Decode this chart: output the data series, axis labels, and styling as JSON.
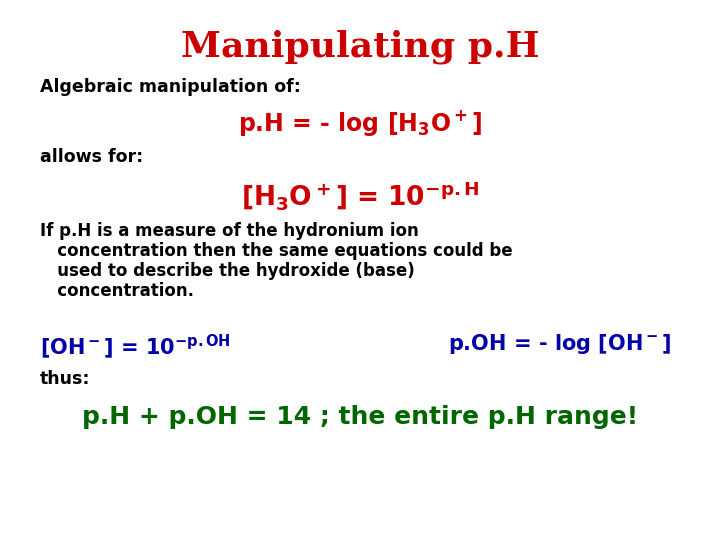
{
  "title": "Manipulating p.H",
  "title_color": "#CC0000",
  "title_fontsize": 26,
  "background_color": "#FFFFFF",
  "line1_text": "Algebraic manipulation of:",
  "line1_color": "#000000",
  "line1_fontsize": 12.5,
  "line2_color": "#CC0000",
  "line2_fontsize": 17,
  "line3_text": "allows for:",
  "line3_color": "#000000",
  "line3_fontsize": 12.5,
  "line4_color": "#CC0000",
  "line4_fontsize": 19,
  "line5_line1": "If p.H is a measure of the hydronium ion",
  "line5_line2": "   concentration then the same equations could be",
  "line5_line3": "   used to describe the hydroxide (base)",
  "line5_line4": "   concentration.",
  "line5_color": "#000000",
  "line5_fontsize": 12.0,
  "line6_color": "#0000AA",
  "line6_fontsize": 15,
  "line7_text": "thus:",
  "line7_color": "#000000",
  "line7_fontsize": 12.5,
  "line8_color": "#006600",
  "line8_fontsize": 18
}
